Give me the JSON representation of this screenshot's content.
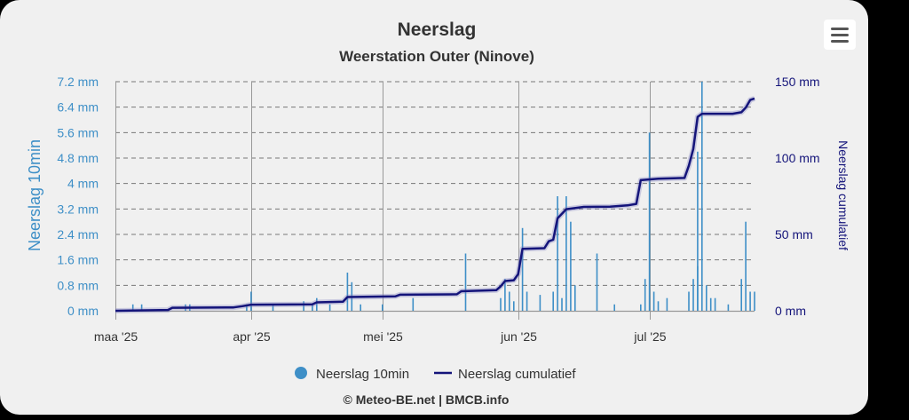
{
  "chart_data": {
    "type": "bar+line",
    "title": "Neerslag",
    "subtitle": "Weerstation Outer (Ninove)",
    "credit": "© Meteo-BE.net | BMCB.info",
    "x_ticks": [
      "maa '25",
      "apr '25",
      "mei '25",
      "jun '25",
      "jul '25"
    ],
    "y_left": {
      "label": "Neerslag 10min",
      "ticks": [
        "0 mm",
        "0.8 mm",
        "1.6 mm",
        "2.4 mm",
        "3.2 mm",
        "4 mm",
        "4.8 mm",
        "5.6 mm",
        "6.4 mm",
        "7.2 mm"
      ],
      "range": [
        0,
        7.2
      ]
    },
    "y_right": {
      "label": "Neerslag cumulatief",
      "ticks": [
        "0 mm",
        "50 mm",
        "100 mm",
        "150 mm"
      ],
      "range": [
        0,
        150
      ]
    },
    "x_range": [
      "2025-03-01",
      "2025-07-25"
    ],
    "grid": true,
    "legend_position": "bottom",
    "colors": {
      "bars": "#3e8fc7",
      "line": "#14147a",
      "left_axis": "#3e8fc7",
      "right_axis": "#14147a"
    },
    "series": [
      {
        "name": "Neerslag 10min",
        "type": "bar",
        "points": [
          [
            "2025-03-05",
            0.2
          ],
          [
            "2025-03-07",
            0.2
          ],
          [
            "2025-03-17",
            0.2
          ],
          [
            "2025-03-18",
            0.2
          ],
          [
            "2025-03-31",
            0.2
          ],
          [
            "2025-04-01",
            0.6
          ],
          [
            "2025-04-06",
            0.2
          ],
          [
            "2025-04-13",
            0.3
          ],
          [
            "2025-04-15",
            0.2
          ],
          [
            "2025-04-16",
            0.4
          ],
          [
            "2025-04-19",
            0.2
          ],
          [
            "2025-04-23",
            1.2
          ],
          [
            "2025-04-24",
            0.9
          ],
          [
            "2025-04-26",
            0.2
          ],
          [
            "2025-05-01",
            0.2
          ],
          [
            "2025-05-08",
            0.4
          ],
          [
            "2025-05-20",
            1.8
          ],
          [
            "2025-05-28",
            0.4
          ],
          [
            "2025-05-29",
            1.0
          ],
          [
            "2025-05-30",
            0.6
          ],
          [
            "2025-05-31",
            0.3
          ],
          [
            "2025-06-02",
            2.6
          ],
          [
            "2025-06-03",
            0.6
          ],
          [
            "2025-06-06",
            0.5
          ],
          [
            "2025-06-09",
            0.6
          ],
          [
            "2025-06-10",
            3.6
          ],
          [
            "2025-06-11",
            0.4
          ],
          [
            "2025-06-12",
            3.6
          ],
          [
            "2025-06-13",
            2.8
          ],
          [
            "2025-06-14",
            0.8
          ],
          [
            "2025-06-19",
            1.8
          ],
          [
            "2025-06-23",
            0.2
          ],
          [
            "2025-06-29",
            0.2
          ],
          [
            "2025-06-30",
            1.0
          ],
          [
            "2025-07-01",
            5.6
          ],
          [
            "2025-07-02",
            0.6
          ],
          [
            "2025-07-03",
            0.3
          ],
          [
            "2025-07-05",
            0.4
          ],
          [
            "2025-07-10",
            0.6
          ],
          [
            "2025-07-11",
            1.0
          ],
          [
            "2025-07-12",
            5.0
          ],
          [
            "2025-07-12",
            1.4
          ],
          [
            "2025-07-13",
            7.2
          ],
          [
            "2025-07-14",
            0.8
          ],
          [
            "2025-07-15",
            0.4
          ],
          [
            "2025-07-16",
            0.4
          ],
          [
            "2025-07-19",
            0.2
          ],
          [
            "2025-07-22",
            1.0
          ],
          [
            "2025-07-23",
            2.8
          ],
          [
            "2025-07-24",
            0.6
          ],
          [
            "2025-07-25",
            0.6
          ]
        ]
      },
      {
        "name": "Neerslag cumulatief",
        "type": "line",
        "points": [
          [
            "2025-03-01",
            0
          ],
          [
            "2025-03-13",
            0.5
          ],
          [
            "2025-03-14",
            2
          ],
          [
            "2025-03-28",
            2.2
          ],
          [
            "2025-03-30",
            3
          ],
          [
            "2025-04-01",
            4
          ],
          [
            "2025-04-15",
            4.2
          ],
          [
            "2025-04-16",
            5.5
          ],
          [
            "2025-04-22",
            6
          ],
          [
            "2025-04-23",
            9
          ],
          [
            "2025-05-04",
            9.5
          ],
          [
            "2025-05-05",
            10.5
          ],
          [
            "2025-05-18",
            10.8
          ],
          [
            "2025-05-19",
            12.8
          ],
          [
            "2025-05-27",
            13.5
          ],
          [
            "2025-05-28",
            16
          ],
          [
            "2025-05-29",
            19.5
          ],
          [
            "2025-05-31",
            20
          ],
          [
            "2025-06-01",
            24
          ],
          [
            "2025-06-02",
            40.5
          ],
          [
            "2025-06-07",
            41
          ],
          [
            "2025-06-08",
            45.5
          ],
          [
            "2025-06-09",
            46.5
          ],
          [
            "2025-06-10",
            60.5
          ],
          [
            "2025-06-11",
            63.5
          ],
          [
            "2025-06-12",
            66.5
          ],
          [
            "2025-06-16",
            68
          ],
          [
            "2025-06-22",
            68.2
          ],
          [
            "2025-06-26",
            69
          ],
          [
            "2025-06-28",
            70
          ],
          [
            "2025-06-29",
            85.5
          ],
          [
            "2025-07-03",
            86.5
          ],
          [
            "2025-07-09",
            87
          ],
          [
            "2025-07-10",
            95
          ],
          [
            "2025-07-11",
            106
          ],
          [
            "2025-07-12",
            127
          ],
          [
            "2025-07-13",
            129
          ],
          [
            "2025-07-20",
            129
          ],
          [
            "2025-07-22",
            130
          ],
          [
            "2025-07-23",
            133
          ],
          [
            "2025-07-24",
            138
          ],
          [
            "2025-07-25",
            139
          ]
        ]
      }
    ]
  }
}
